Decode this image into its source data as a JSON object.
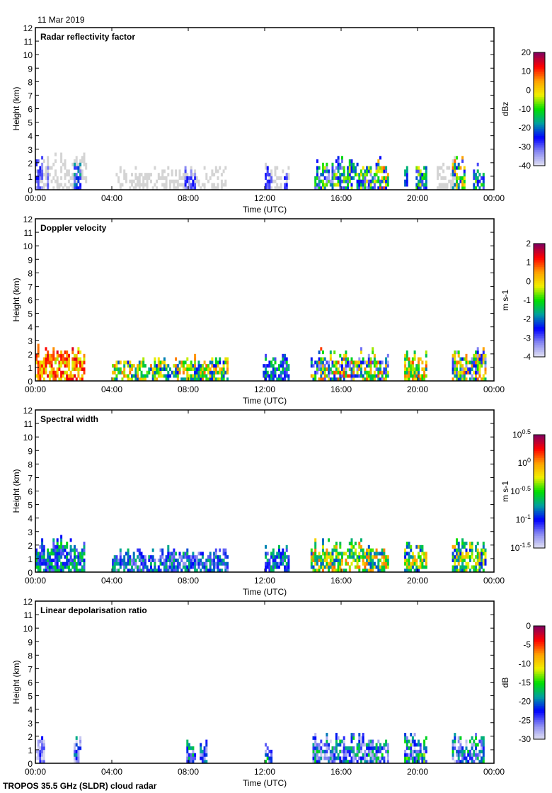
{
  "date_label": "11 Mar 2019",
  "footer": "TROPOS 35.5 GHz (SLDR) cloud radar",
  "colors": {
    "below_threshold": "#d4d4d4",
    "colormap": [
      "#e2e2f2",
      "#8a8af2",
      "#0000ff",
      "#00a0a0",
      "#00e000",
      "#f0f000",
      "#ffa000",
      "#ff0000",
      "#800060"
    ]
  },
  "chart_data": [
    {
      "type": "heatmap",
      "title": "Radar reflectivity factor",
      "xlabel": "Time (UTC)",
      "ylabel": "Height (km)",
      "xlim_hours": [
        0,
        24
      ],
      "ylim": [
        0,
        12
      ],
      "xticks": [
        "00:00",
        "04:00",
        "08:00",
        "12:00",
        "16:00",
        "20:00",
        "00:00"
      ],
      "yticks": [
        "0",
        "1",
        "2",
        "3",
        "4",
        "5",
        "6",
        "7",
        "8",
        "9",
        "10",
        "11",
        "12"
      ],
      "colorbar": {
        "label": "dBz",
        "range": [
          -40,
          20
        ],
        "ticks": [
          "20",
          "10",
          "0",
          "-10",
          "-20",
          "-30",
          "-40"
        ]
      },
      "echo_segments_note": "t_start_h, t_end_h, top_km, vmin, vmax",
      "below_threshold_segments": [
        [
          0,
          2.7,
          2.7
        ],
        [
          4.2,
          10.0,
          1.8
        ],
        [
          12.0,
          13.2,
          1.9
        ],
        [
          21.0,
          22.0,
          2.5
        ]
      ],
      "segments": [
        [
          0,
          0.4,
          2.3,
          -35,
          -25
        ],
        [
          0.6,
          0.7,
          2.2,
          -35,
          -28
        ],
        [
          2.0,
          2.4,
          2.2,
          -32,
          -15
        ],
        [
          7.8,
          8.3,
          1.7,
          -35,
          -25
        ],
        [
          12.0,
          12.3,
          1.8,
          -32,
          -25
        ],
        [
          13.0,
          13.2,
          1.5,
          -32,
          -25
        ],
        [
          14.6,
          17.9,
          2.3,
          -35,
          0
        ],
        [
          17.9,
          18.5,
          2.4,
          -30,
          10
        ],
        [
          19.3,
          19.5,
          1.8,
          -30,
          -15
        ],
        [
          19.9,
          20.5,
          2.0,
          -30,
          0
        ],
        [
          21.8,
          22.5,
          2.5,
          -30,
          10
        ],
        [
          22.9,
          23.5,
          1.8,
          -30,
          -5
        ]
      ]
    },
    {
      "type": "heatmap",
      "title": "Doppler velocity",
      "xlabel": "Time (UTC)",
      "ylabel": "Height (km)",
      "xlim_hours": [
        0,
        24
      ],
      "ylim": [
        0,
        12
      ],
      "xticks": [
        "00:00",
        "04:00",
        "08:00",
        "12:00",
        "16:00",
        "20:00",
        "00:00"
      ],
      "yticks": [
        "0",
        "1",
        "2",
        "3",
        "4",
        "5",
        "6",
        "7",
        "8",
        "9",
        "10",
        "11",
        "12"
      ],
      "colorbar": {
        "label": "m s-1",
        "range": [
          -4,
          2
        ],
        "ticks": [
          "2",
          "1",
          "0",
          "-1",
          "-2",
          "-3",
          "-4"
        ]
      },
      "below_threshold_segments": [],
      "segments": [
        [
          0,
          2.6,
          2.7,
          -0.5,
          1.5
        ],
        [
          4.0,
          10.0,
          1.8,
          -2.5,
          0.8
        ],
        [
          11.9,
          13.2,
          2.0,
          -3,
          -1
        ],
        [
          14.4,
          18.5,
          2.4,
          -3.5,
          1
        ],
        [
          19.3,
          20.5,
          2.3,
          -2,
          1
        ],
        [
          21.8,
          23.6,
          2.5,
          -3.5,
          1
        ]
      ]
    },
    {
      "type": "heatmap",
      "title": "Spectral width",
      "xlabel": "Time (UTC)",
      "ylabel": "Height (km)",
      "xlim_hours": [
        0,
        24
      ],
      "ylim": [
        0,
        12
      ],
      "xticks": [
        "00:00",
        "04:00",
        "08:00",
        "12:00",
        "16:00",
        "20:00",
        "00:00"
      ],
      "yticks": [
        "0",
        "1",
        "2",
        "3",
        "4",
        "5",
        "6",
        "7",
        "8",
        "9",
        "10",
        "11",
        "12"
      ],
      "colorbar": {
        "label": "m s-1",
        "scale": "log10",
        "range": [
          -1.5,
          0.5
        ],
        "ticks": [
          "10^0.5",
          "10^0",
          "10^-0.5",
          "10^-1",
          "10^-1.5"
        ]
      },
      "below_threshold_segments": [],
      "segments": [
        [
          0,
          2.6,
          2.7,
          -1.2,
          -0.5
        ],
        [
          4.0,
          10.0,
          1.8,
          -1.3,
          -0.6
        ],
        [
          12.0,
          13.2,
          2.0,
          -1.2,
          -0.6
        ],
        [
          14.4,
          18.5,
          2.4,
          -0.9,
          0.1
        ],
        [
          19.3,
          20.5,
          2.3,
          -1.0,
          0.0
        ],
        [
          21.8,
          23.6,
          2.5,
          -1.0,
          0.0
        ]
      ]
    },
    {
      "type": "heatmap",
      "title": "Linear depolarisation ratio",
      "xlabel": "Time (UTC)",
      "ylabel": "Height (km)",
      "xlim_hours": [
        0,
        24
      ],
      "ylim": [
        0,
        12
      ],
      "xticks": [
        "00:00",
        "04:00",
        "08:00",
        "12:00",
        "16:00",
        "20:00",
        "00:00"
      ],
      "yticks": [
        "0",
        "1",
        "2",
        "3",
        "4",
        "5",
        "6",
        "7",
        "8",
        "9",
        "10",
        "11",
        "12"
      ],
      "colorbar": {
        "label": "dB",
        "range": [
          -30,
          0
        ],
        "ticks": [
          "0",
          "-5",
          "-10",
          "-15",
          "-20",
          "-25",
          "-30"
        ]
      },
      "below_threshold_segments": [],
      "segments": [
        [
          0,
          0.5,
          2.1,
          -30,
          -22
        ],
        [
          2.0,
          2.4,
          2.3,
          -30,
          -18
        ],
        [
          7.9,
          8.3,
          1.8,
          -28,
          -15
        ],
        [
          8.6,
          8.9,
          1.8,
          -28,
          -18
        ],
        [
          12.0,
          12.3,
          1.5,
          -28,
          -15
        ],
        [
          14.5,
          18.5,
          2.2,
          -30,
          -15
        ],
        [
          19.3,
          20.5,
          2.2,
          -30,
          -12
        ],
        [
          21.8,
          23.5,
          2.4,
          -30,
          -15
        ]
      ]
    }
  ]
}
